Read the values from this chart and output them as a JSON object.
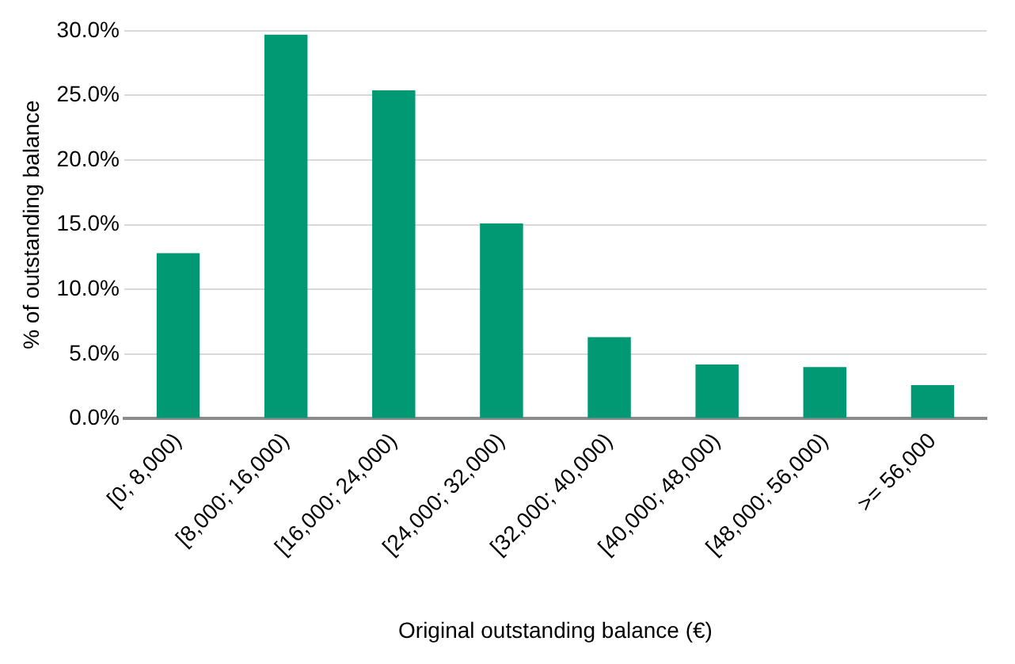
{
  "chart_data": {
    "type": "bar",
    "xlabel": "Original outstanding balance (€)",
    "ylabel": "% of outstanding balance",
    "categories": [
      "[0; 8,000)",
      "[8,000; 16,000)",
      "[16,000; 24,000)",
      "[24,000; 32,000)",
      "[32,000; 40,000)",
      "[40,000; 48,000)",
      "[48,000; 56,000)",
      ">= 56,000"
    ],
    "values": [
      12.8,
      29.7,
      25.4,
      15.1,
      6.3,
      4.2,
      4.0,
      2.6
    ],
    "color": "#009974",
    "ylim": [
      0,
      30
    ],
    "yticks": [
      {
        "value": 0,
        "label": "0.0%"
      },
      {
        "value": 5,
        "label": "5.0%"
      },
      {
        "value": 10,
        "label": "10.0%"
      },
      {
        "value": 15,
        "label": "15.0%"
      },
      {
        "value": 20,
        "label": "20.0%"
      },
      {
        "value": 25,
        "label": "25.0%"
      },
      {
        "value": 30,
        "label": "30.0%"
      }
    ],
    "grid": "y",
    "legend": false
  }
}
